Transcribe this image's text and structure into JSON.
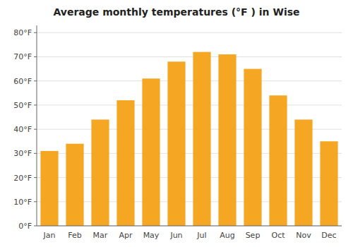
{
  "chart_data": {
    "type": "bar",
    "title": "Average monthly temperatures (°F ) in Wise",
    "categories": [
      "Jan",
      "Feb",
      "Mar",
      "Apr",
      "May",
      "Jun",
      "Jul",
      "Aug",
      "Sep",
      "Oct",
      "Nov",
      "Dec"
    ],
    "values": [
      31,
      34,
      44,
      52,
      61,
      68,
      72,
      71,
      65,
      54,
      44,
      35
    ],
    "color": "#F5A623",
    "ylim": [
      0,
      83
    ],
    "yticks": [
      {
        "value": 0,
        "label": "0°F"
      },
      {
        "value": 10,
        "label": "10°F"
      },
      {
        "value": 20,
        "label": "20°F"
      },
      {
        "value": 30,
        "label": "30°F"
      },
      {
        "value": 40,
        "label": "40°F"
      },
      {
        "value": 50,
        "label": "50°F"
      },
      {
        "value": 60,
        "label": "60°F"
      },
      {
        "value": 70,
        "label": "70°F"
      },
      {
        "value": 80,
        "label": "80°F"
      }
    ],
    "grid": true
  }
}
